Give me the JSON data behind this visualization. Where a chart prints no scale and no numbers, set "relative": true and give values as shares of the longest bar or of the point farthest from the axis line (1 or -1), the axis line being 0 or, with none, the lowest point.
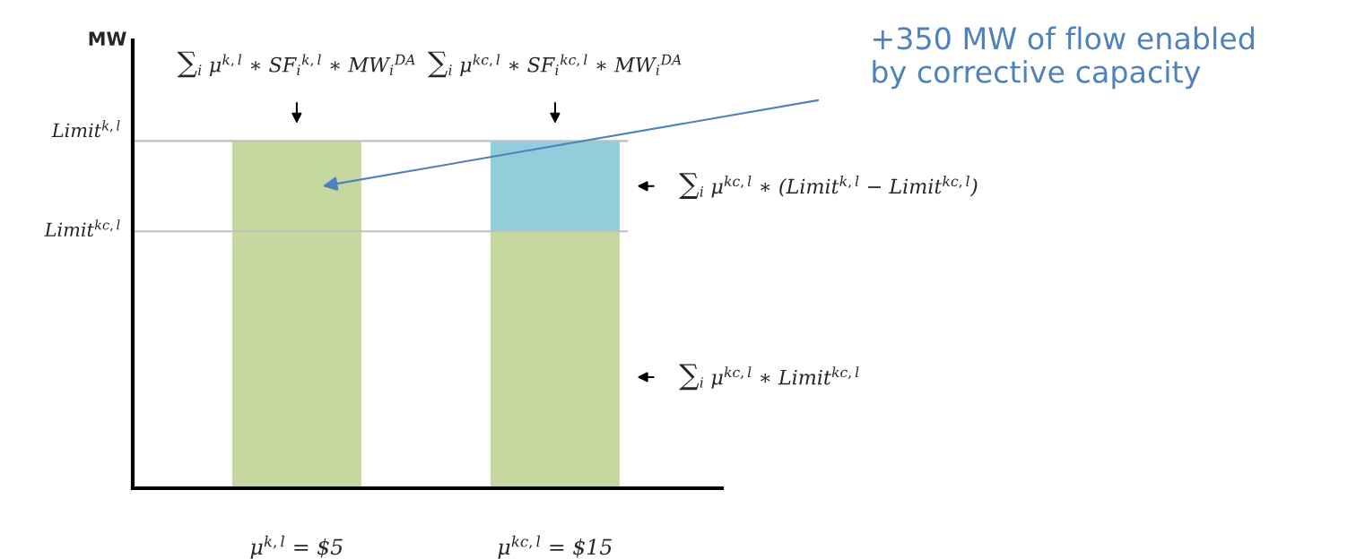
{
  "chart_data": {
    "type": "bar",
    "stacked": true,
    "relative": true,
    "categories": [
      "μ$^{k,l}$ = $5",
      "μ$^{kc,l}$ = $15"
    ],
    "series": [
      {
        "color": "#c5d89f",
        "values": [
          1,
          0.74
        ]
      },
      {
        "color": "#92cddc",
        "values": [
          null,
          0.26
        ]
      }
    ],
    "ref_lines": [
      {
        "axis": "y",
        "value": 1,
        "label": "Limit$^{k,l}$",
        "color": "#bfbfbf"
      },
      {
        "axis": "y",
        "value": 0.74,
        "label": "Limit$^{kc,l}$",
        "color": "#bfbfbf"
      }
    ],
    "annotations": [
      "∑$_{i}$ μ$^{k,l}$ ∗ SF$_{i}$$^{k,l}$ ∗ MW$_{i}$$^{DA}$",
      "∑$_{i}$ μ$^{kc,l}$ ∗ SF$_{i}$$^{kc,l}$ ∗ MW$_{i}$$^{DA}$",
      "∑$_{i}$ μ$^{kc,l}$ ∗ (Limit$^{k,l}$ − Limit$^{kc,l}$)",
      "∑$_{i}$ μ$^{kc,l}$ ∗ Limit$^{kc,l}$",
      "+350 MW of flow enabled\nby corrective capacity",
      "MW"
    ],
    "grid": false,
    "legend": false
  }
}
